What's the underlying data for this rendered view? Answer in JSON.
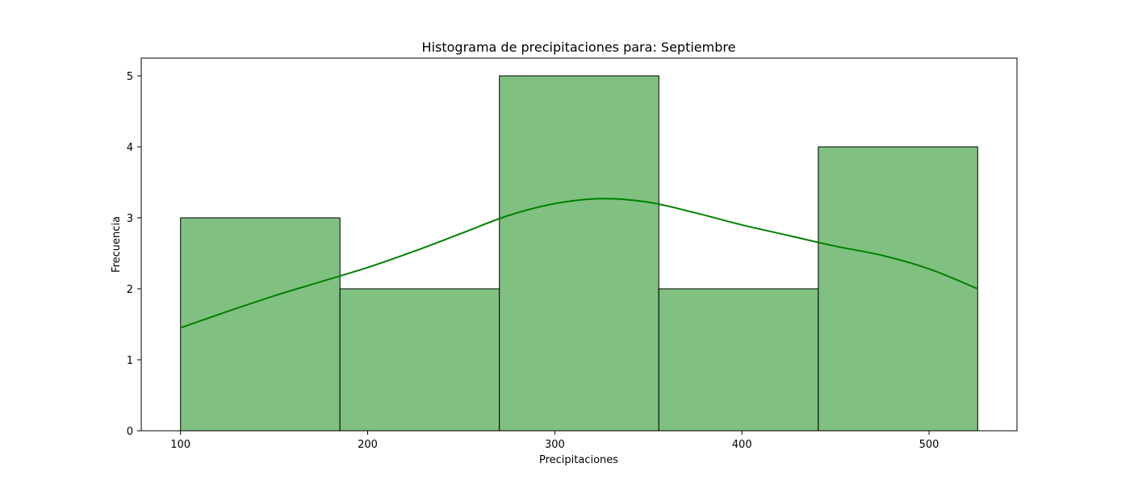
{
  "chart_data": {
    "type": "bar",
    "title": "Histograma de precipitaciones para: Septiembre",
    "xlabel": "Precipitaciones",
    "ylabel": "Frecuencia",
    "bins": [
      {
        "start": 100,
        "end": 185.2,
        "count": 3
      },
      {
        "start": 185.2,
        "end": 270.4,
        "count": 2
      },
      {
        "start": 270.4,
        "end": 355.6,
        "count": 5
      },
      {
        "start": 355.6,
        "end": 440.8,
        "count": 2
      },
      {
        "start": 440.8,
        "end": 526,
        "count": 4
      }
    ],
    "xlim": [
      79,
      547
    ],
    "ylim": [
      0,
      5.25
    ],
    "xticks": [
      100,
      200,
      300,
      400,
      500
    ],
    "yticks": [
      0,
      1,
      2,
      3,
      4,
      5
    ],
    "kde": {
      "x": [
        100,
        125,
        150,
        175,
        200,
        225,
        250,
        275,
        300,
        325,
        350,
        375,
        400,
        425,
        450,
        475,
        500,
        526
      ],
      "y": [
        1.45,
        1.68,
        1.9,
        2.1,
        2.3,
        2.53,
        2.78,
        3.03,
        3.2,
        3.27,
        3.22,
        3.07,
        2.9,
        2.75,
        2.6,
        2.47,
        2.28,
        2.0
      ]
    },
    "colors": {
      "bar_fill": "#80c080",
      "bar_edge": "#000000",
      "kde_line": "#008000"
    },
    "grid": false,
    "legend": "none"
  }
}
